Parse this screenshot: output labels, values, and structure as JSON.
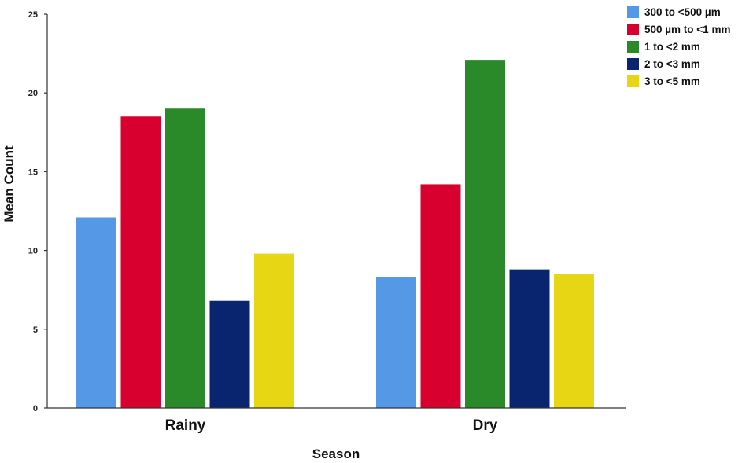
{
  "chart_data": {
    "type": "bar",
    "categories": [
      "Rainy",
      "Dry"
    ],
    "series": [
      {
        "name": "300 to <500 µm",
        "values": [
          12.1,
          8.3
        ],
        "color": "#5599e6"
      },
      {
        "name": "500 µm to <1 mm",
        "values": [
          18.5,
          14.2
        ],
        "color": "#d8002f"
      },
      {
        "name": "1 to <2 mm",
        "values": [
          19.0,
          22.1
        ],
        "color": "#2a8a2a"
      },
      {
        "name": "2 to <3 mm",
        "values": [
          6.8,
          8.8
        ],
        "color": "#0a2570"
      },
      {
        "name": "3 to <5 mm",
        "values": [
          9.8,
          8.5
        ],
        "color": "#e6d614"
      }
    ],
    "xlabel": "Season",
    "ylabel": "Mean Count",
    "ylim": [
      0,
      25
    ],
    "yticks": [
      "0",
      "5",
      "10",
      "15",
      "20",
      "25"
    ],
    "legend": "top-right",
    "grid": false
  }
}
